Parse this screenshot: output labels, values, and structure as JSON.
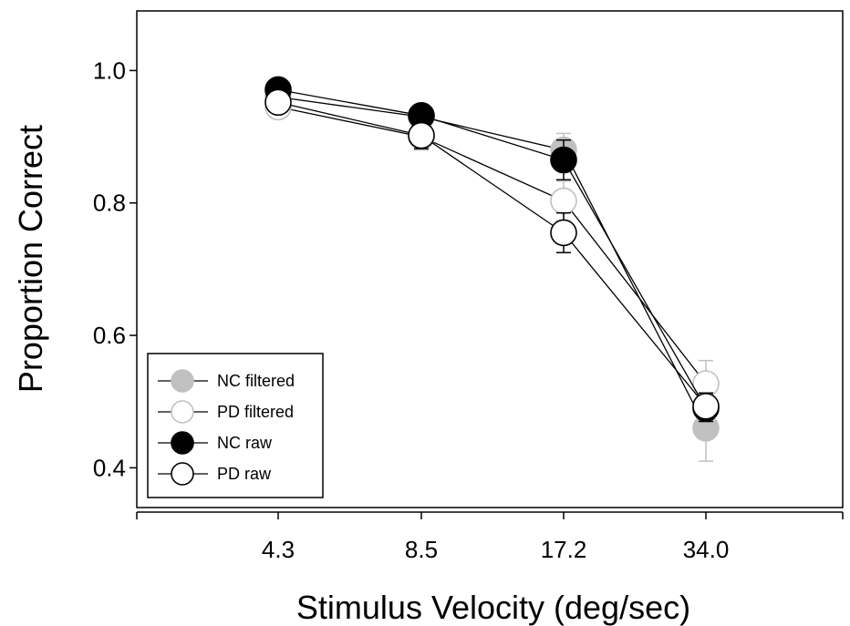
{
  "chart_data": {
    "type": "line",
    "title": "",
    "xlabel": "Stimulus Velocity (deg/sec)",
    "ylabel": "Proportion Correct",
    "categories": [
      "4.3",
      "8.5",
      "17.2",
      "34.0"
    ],
    "ylim": [
      0.34,
      1.09
    ],
    "yticks": [
      "0.4",
      "0.6",
      "0.8",
      "1.0"
    ],
    "ytick_values": [
      0.4,
      0.6,
      0.8,
      1.0
    ],
    "grid": false,
    "legend_position": "bottom-left",
    "series": [
      {
        "name": "NC filtered",
        "fill": "#c0c0c0",
        "stroke": "#c0c0c0",
        "errorbar_color": "#c0c0c0",
        "values": [
          0.96,
          0.93,
          0.88,
          0.46
        ],
        "errors": [
          0.01,
          0.01,
          0.025,
          0.05
        ]
      },
      {
        "name": "PD filtered",
        "fill": "#ffffff",
        "stroke": "#c0c0c0",
        "errorbar_color": "#c0c0c0",
        "values": [
          0.945,
          0.9,
          0.803,
          0.527
        ],
        "errors": [
          0.015,
          0.02,
          0.03,
          0.035
        ]
      },
      {
        "name": "NC raw",
        "fill": "#000000",
        "stroke": "#000000",
        "errorbar_color": "#000000",
        "values": [
          0.971,
          0.932,
          0.865,
          0.49
        ],
        "errors": [
          0.01,
          0.01,
          0.03,
          0.02
        ]
      },
      {
        "name": "PD raw",
        "fill": "#ffffff",
        "stroke": "#000000",
        "errorbar_color": "#000000",
        "values": [
          0.952,
          0.902,
          0.755,
          0.493
        ],
        "errors": [
          0.012,
          0.02,
          0.03,
          0.02
        ]
      }
    ]
  }
}
